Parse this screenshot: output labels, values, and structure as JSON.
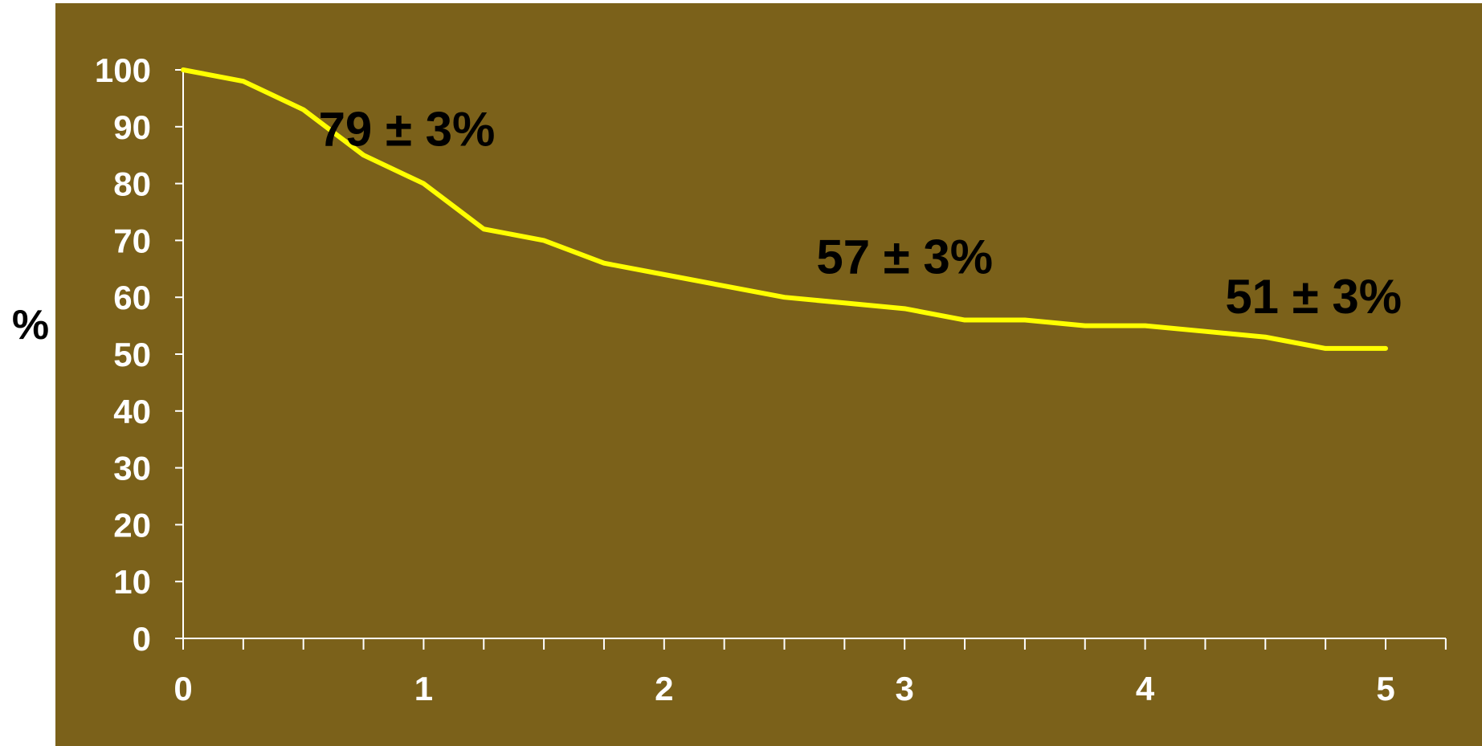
{
  "chart_data": {
    "type": "line",
    "title": "",
    "xlabel": "",
    "ylabel": "%",
    "xlim": [
      0,
      5
    ],
    "ylim": [
      0,
      100
    ],
    "x_ticks": [
      "0",
      "1",
      "2",
      "3",
      "4",
      "5"
    ],
    "y_ticks": [
      "0",
      "10",
      "20",
      "30",
      "40",
      "50",
      "60",
      "70",
      "80",
      "90",
      "100"
    ],
    "grid": false,
    "legend": "none",
    "series": [
      {
        "x": [
          0,
          0.25,
          0.5,
          0.75,
          1,
          1.25,
          1.5,
          1.75,
          2,
          2.25,
          2.5,
          2.75,
          3,
          3.25,
          3.5,
          3.75,
          4,
          4.25,
          4.5,
          4.75,
          5
        ],
        "y": [
          100,
          98,
          93,
          85,
          80,
          72,
          70,
          66,
          64,
          62,
          60,
          59,
          58,
          56,
          56,
          55,
          55,
          54,
          53,
          51,
          51
        ]
      }
    ],
    "annotations": [
      {
        "text": "79 ± 3%",
        "x": 0.93,
        "y": 89.5
      },
      {
        "text": "57 ± 3%",
        "x": 3.0,
        "y": 67
      },
      {
        "text": "51 ± 3%",
        "x": 4.7,
        "y": 60
      }
    ]
  },
  "colors": {
    "plot_background": "#7b611a",
    "line": "#ffff00",
    "axis": "#ffffff",
    "tick_label": "#ffffff",
    "annotation": "#000000",
    "page_background": "#ffffff"
  }
}
